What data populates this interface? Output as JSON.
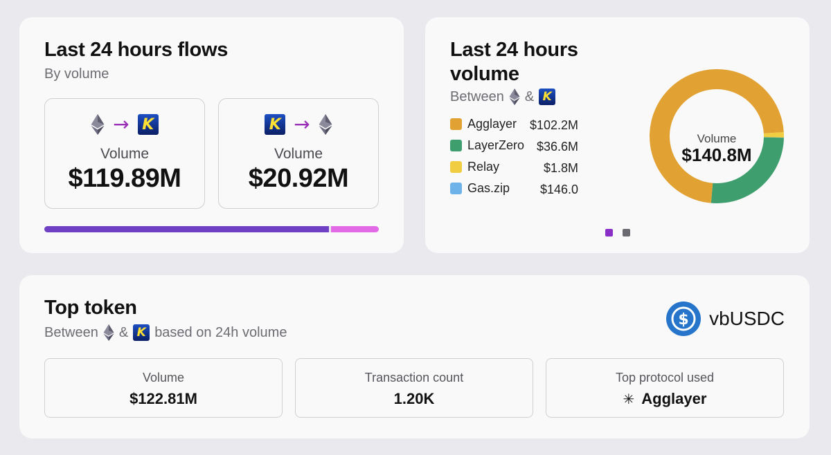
{
  "flows": {
    "title": "Last 24 hours flows",
    "subtitle": "By volume",
    "eth_to_k": {
      "label": "Volume",
      "value": "$119.89M"
    },
    "k_to_eth": {
      "label": "Volume",
      "value": "$20.92M"
    },
    "progress_share": 0.85
  },
  "volume": {
    "title_line1": "Last 24 hours",
    "title_line2": "volume",
    "between_label": "Between",
    "amp": "&",
    "legend": [
      {
        "name": "Agglayer",
        "value": "$102.2M",
        "color": "#e2a233"
      },
      {
        "name": "LayerZero",
        "value": "$36.6M",
        "color": "#3f9e6e"
      },
      {
        "name": "Relay",
        "value": "$1.8M",
        "color": "#f1cd42"
      },
      {
        "name": "Gas.zip",
        "value": "$146.0",
        "color": "#6db2e8"
      }
    ],
    "donut_label": "Volume",
    "donut_total": "$140.8M",
    "page_dots": [
      {
        "color": "#8b2fc9"
      },
      {
        "color": "#6a6a70"
      }
    ]
  },
  "chart_data": {
    "type": "pie",
    "title": "Volume",
    "categories": [
      "Agglayer",
      "LayerZero",
      "Relay",
      "Gas.zip"
    ],
    "values": [
      102.2,
      36.6,
      1.8,
      0.000146
    ],
    "unit": "$M",
    "total": "$140.8M"
  },
  "token": {
    "title": "Top token",
    "between_label": "Between",
    "amp": "&",
    "suffix": "based on 24h volume",
    "token_name": "vbUSDC",
    "stats": [
      {
        "label": "Volume",
        "value": "$122.81M"
      },
      {
        "label": "Transaction count",
        "value": "1.20K"
      },
      {
        "label": "Top protocol used",
        "value": "Agglayer"
      }
    ]
  },
  "colors": {
    "accent_purple": "#6f3fc4",
    "accent_pink": "#e26ae6",
    "usdc_blue": "#2775ca"
  }
}
